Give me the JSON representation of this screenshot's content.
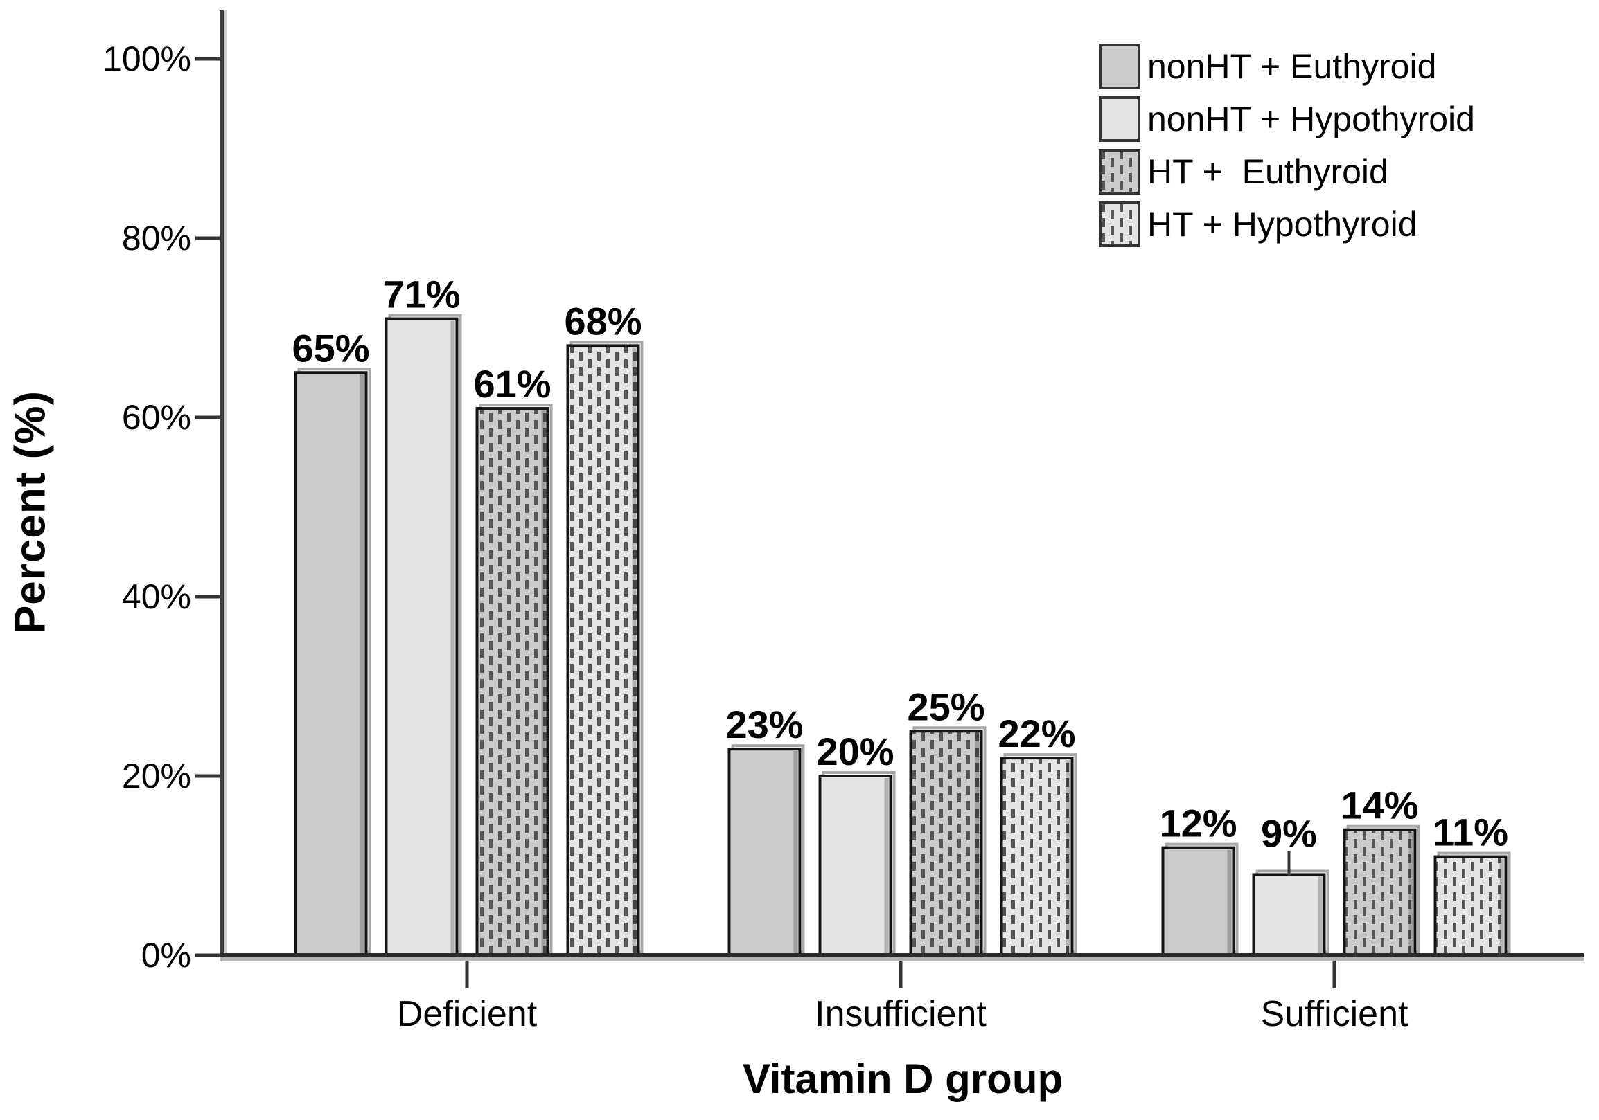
{
  "figure": {
    "background": "#ffffff"
  },
  "chart_data": {
    "type": "bar",
    "title": "",
    "xlabel": "Vitamin D group",
    "ylabel": "Percent (%)",
    "categories": [
      "Deficient",
      "Insufficient",
      "Sufficient"
    ],
    "series": [
      {
        "name": "nonHT + Euthyroid",
        "fill": "#cbcbcb",
        "pattern": "solid",
        "values": [
          65,
          23,
          12
        ],
        "labels": [
          "65%",
          "23%",
          "12%"
        ]
      },
      {
        "name": "nonHT + Hypothyroid",
        "fill": "#e4e4e4",
        "pattern": "solid",
        "values": [
          71,
          20,
          9
        ],
        "labels": [
          "71%",
          "20%",
          "9%"
        ]
      },
      {
        "name": "HT +  Euthyroid",
        "fill": "#cbcbcb",
        "pattern": "vertical-dashes",
        "values": [
          61,
          25,
          14
        ],
        "labels": [
          "61%",
          "25%",
          "14%"
        ]
      },
      {
        "name": "HT + Hypothyroid",
        "fill": "#e4e4e4",
        "pattern": "vertical-dashes",
        "values": [
          68,
          22,
          11
        ],
        "labels": [
          "68%",
          "22%",
          "11%"
        ]
      }
    ],
    "y_ticks": [
      {
        "value": 0,
        "label": "0%"
      },
      {
        "value": 20,
        "label": "20%"
      },
      {
        "value": 40,
        "label": "40%"
      },
      {
        "value": 60,
        "label": "60%"
      },
      {
        "value": 80,
        "label": "80%"
      },
      {
        "value": 100,
        "label": "100%"
      }
    ],
    "ylim": [
      0,
      100
    ],
    "grid": false,
    "legend_position": "top-right",
    "annotations": {
      "leader_line_label": "9%"
    },
    "colors": {
      "bar_border": "#141414",
      "bar_halo": "#a8a8a8",
      "pattern_dash": "#555555",
      "right_shade": "rgba(0,0,0,0.22)",
      "axis": "#333333",
      "axis_shadow": "#b3b3b3",
      "text": "#000000",
      "legend_swatch_border": "#333333"
    }
  }
}
